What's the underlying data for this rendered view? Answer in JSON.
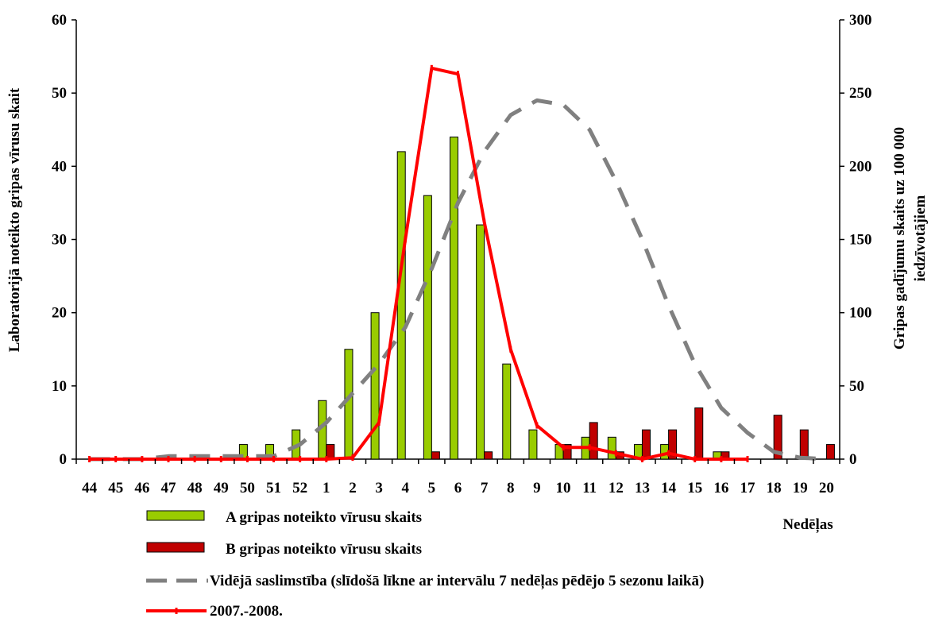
{
  "chart_data": {
    "type": "bar",
    "categories": [
      "44",
      "45",
      "46",
      "47",
      "48",
      "49",
      "50",
      "51",
      "52",
      "1",
      "2",
      "3",
      "4",
      "5",
      "6",
      "7",
      "8",
      "9",
      "10",
      "11",
      "12",
      "13",
      "14",
      "15",
      "16",
      "17",
      "18",
      "19",
      "20"
    ],
    "ylabel": "Laboratorijā noteikto gripas  vīrusu skait",
    "y2label_line1": "Gripas gadījumu skaits uz 100 000",
    "y2label_line2": "iedzīvotājiem",
    "xlabel": "Nedēļas",
    "ylim": [
      0,
      60
    ],
    "y2lim": [
      0,
      300
    ],
    "yticks": [
      0,
      10,
      20,
      30,
      40,
      50,
      60
    ],
    "y2ticks": [
      0,
      50,
      100,
      150,
      200,
      250,
      300
    ],
    "grid": false,
    "legend_position": "bottom",
    "series": [
      {
        "name": "A gripas noteikto vīrusu skaits",
        "kind": "bar",
        "axis": "left",
        "color": "#99cc00",
        "values": [
          0,
          0,
          0,
          0,
          0,
          0,
          2,
          2,
          4,
          8,
          15,
          20,
          42,
          36,
          44,
          32,
          13,
          4,
          2,
          3,
          3,
          2,
          2,
          0,
          1,
          0,
          0,
          0,
          0
        ]
      },
      {
        "name": "B gripas noteikto vīrusu skaits",
        "kind": "bar",
        "axis": "left",
        "color": "#c00000",
        "values": [
          0,
          0,
          0,
          0,
          0,
          0,
          0,
          0,
          0,
          2,
          0,
          0,
          0,
          1,
          0,
          1,
          0,
          0,
          2,
          5,
          1,
          4,
          4,
          7,
          1,
          0,
          6,
          4,
          2
        ]
      },
      {
        "name": "Vidējā saslimstība (slīdošā līkne ar intervālu 7 nedēļas pēdējo 5 sezonu laikā)",
        "kind": "line",
        "axis": "right",
        "style": "dashed",
        "color": "#808080",
        "values": [
          0,
          0,
          0,
          2,
          2,
          2,
          2,
          2,
          10,
          25,
          45,
          65,
          90,
          130,
          175,
          210,
          235,
          245,
          242,
          225,
          190,
          150,
          105,
          65,
          35,
          18,
          5,
          1,
          0
        ]
      },
      {
        "name": "2007.-2008.",
        "kind": "line",
        "axis": "right",
        "style": "solid",
        "color": "#ff0000",
        "values": [
          0,
          0,
          0,
          0,
          0,
          0,
          0,
          0,
          0,
          0,
          1,
          25,
          150,
          267,
          263,
          162,
          75,
          23,
          8,
          8,
          4,
          0,
          4,
          0,
          0,
          0,
          null,
          null,
          null
        ]
      }
    ]
  }
}
